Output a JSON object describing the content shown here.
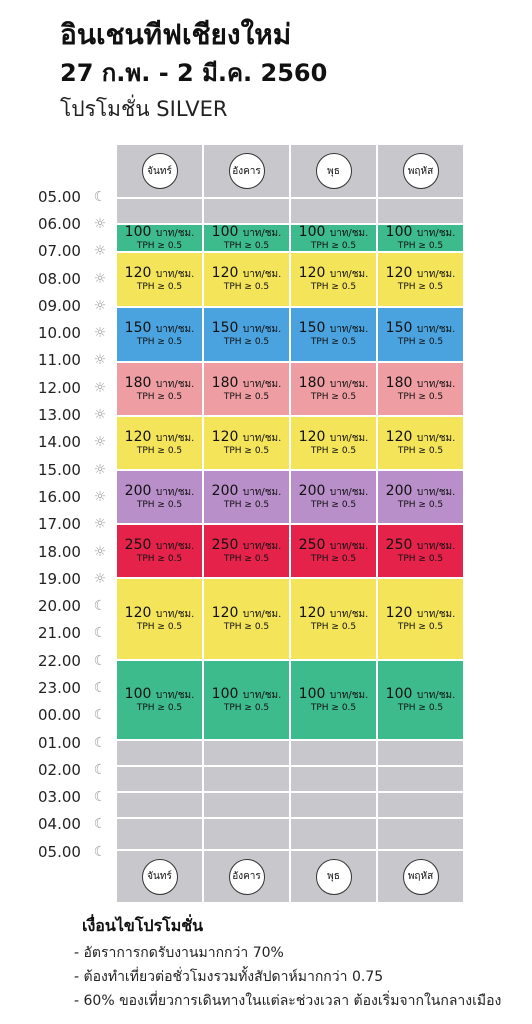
{
  "header": {
    "title": "อินเชนทีฟเชียงใหม่",
    "dates": "27 ก.พ. - 2 มี.ค. 2560",
    "subtitle": "โปรโมชั่น SILVER"
  },
  "days": [
    "จันทร์",
    "อังคาร",
    "พุธ",
    "พฤหัส"
  ],
  "times": [
    {
      "label": "05.00",
      "icon": "moon-icon"
    },
    {
      "label": "06.00",
      "icon": "sun-icon"
    },
    {
      "label": "07.00",
      "icon": "sun-icon"
    },
    {
      "label": "08.00",
      "icon": "sun-icon"
    },
    {
      "label": "09.00",
      "icon": "sun-icon"
    },
    {
      "label": "10.00",
      "icon": "sun-icon"
    },
    {
      "label": "11.00",
      "icon": "sun-icon"
    },
    {
      "label": "12.00",
      "icon": "sun-icon"
    },
    {
      "label": "13.00",
      "icon": "sun-icon"
    },
    {
      "label": "14.00",
      "icon": "sun-icon"
    },
    {
      "label": "15.00",
      "icon": "sun-icon"
    },
    {
      "label": "16.00",
      "icon": "sun-icon"
    },
    {
      "label": "17.00",
      "icon": "sun-icon"
    },
    {
      "label": "18.00",
      "icon": "sun-icon"
    },
    {
      "label": "19.00",
      "icon": "sun-icon"
    },
    {
      "label": "20.00",
      "icon": "moon-icon"
    },
    {
      "label": "21.00",
      "icon": "moon-icon"
    },
    {
      "label": "22.00",
      "icon": "moon-icon"
    },
    {
      "label": "23.00",
      "icon": "moon-icon"
    },
    {
      "label": "00.00",
      "icon": "moon-icon"
    },
    {
      "label": "01.00",
      "icon": "moon-icon"
    },
    {
      "label": "02.00",
      "icon": "moon-icon"
    },
    {
      "label": "03.00",
      "icon": "moon-icon"
    },
    {
      "label": "04.00",
      "icon": "moon-icon"
    },
    {
      "label": "05.00",
      "icon": "moon-icon"
    }
  ],
  "rate_unit": "บาท/ชม.",
  "tph_text": "TPH ≥ 0.5",
  "blocks": [
    {
      "price": "100",
      "color": "#3dbb8c"
    },
    {
      "price": "120",
      "color": "#f4e45a"
    },
    {
      "price": "150",
      "color": "#4aa3de"
    },
    {
      "price": "180",
      "color": "#ee9ea3"
    },
    {
      "price": "120",
      "color": "#f4e45a"
    },
    {
      "price": "200",
      "color": "#b98fca"
    },
    {
      "price": "250",
      "color": "#e4224a"
    },
    {
      "price": "120",
      "color": "#f4e45a"
    },
    {
      "price": "100",
      "color": "#3dbb8c"
    }
  ],
  "conditions": {
    "title": "เงื่อนไขโปรโมชั่น",
    "items": [
      "- อัตราการกดรับงานมากกว่า 70%",
      "- ต้องทำเที่ยวต่อชั่วโมงรวมทั้งสัปดาห์มากกว่า 0.75",
      "- 60% ของเที่ยวการเดินทางในแต่ละช่วงเวลา ต้องเริ่มจากในกลางเมือง"
    ]
  }
}
